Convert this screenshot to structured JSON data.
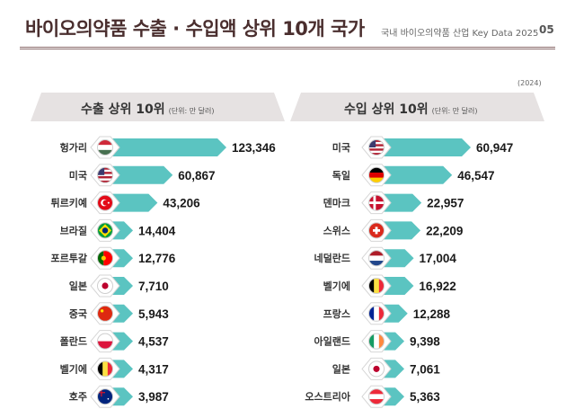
{
  "header": {
    "title": "바이오의약품 수출 · 수입액 상위 10개 국가",
    "subtitle": "국내 바이오의약품 산업 Key Data 2025",
    "page_number": "05",
    "year": "(2024)"
  },
  "colors": {
    "bar": "#5bc4c1",
    "header_bg": "#e6e2e2",
    "title": "#4a2e2e"
  },
  "chart_data": [
    {
      "type": "bar",
      "title": "수출 상위 10위",
      "unit": "(단위: 만 달러)",
      "categories": [
        "헝가리",
        "미국",
        "튀르키예",
        "브라질",
        "포르투갈",
        "일본",
        "중국",
        "폴란드",
        "벨기에",
        "호주"
      ],
      "values": [
        123346,
        60867,
        43206,
        14404,
        12776,
        7710,
        5943,
        4537,
        4317,
        3987
      ],
      "labels": [
        "123,346",
        "60,867",
        "43,206",
        "14,404",
        "12,776",
        "7,710",
        "5,943",
        "4,537",
        "4,317",
        "3,987"
      ],
      "flag_icons": [
        "flag-hungary-icon",
        "flag-usa-icon",
        "flag-turkey-icon",
        "flag-brazil-icon",
        "flag-portugal-icon",
        "flag-japan-icon",
        "flag-china-icon",
        "flag-poland-icon",
        "flag-belgium-icon",
        "flag-australia-icon"
      ]
    },
    {
      "type": "bar",
      "title": "수입 상위 10위",
      "unit": "(단위: 만 달러)",
      "categories": [
        "미국",
        "독일",
        "덴마크",
        "스위스",
        "네덜란드",
        "벨기에",
        "프랑스",
        "아일랜드",
        "일본",
        "오스트리아"
      ],
      "values": [
        60947,
        46547,
        22957,
        22209,
        17004,
        16922,
        12288,
        9398,
        7061,
        5363
      ],
      "labels": [
        "60,947",
        "46,547",
        "22,957",
        "22,209",
        "17,004",
        "16,922",
        "12,288",
        "9,398",
        "7,061",
        "5,363"
      ],
      "flag_icons": [
        "flag-usa-icon",
        "flag-germany-icon",
        "flag-denmark-icon",
        "flag-switzerland-icon",
        "flag-netherlands-icon",
        "flag-belgium-icon",
        "flag-france-icon",
        "flag-ireland-icon",
        "flag-japan-icon",
        "flag-austria-icon"
      ]
    }
  ]
}
